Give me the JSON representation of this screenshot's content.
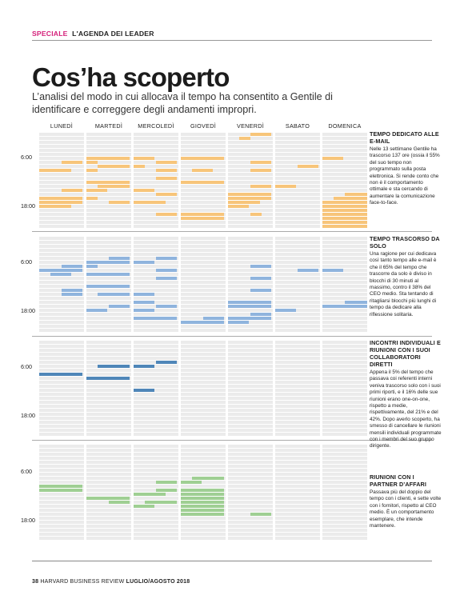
{
  "header": {
    "section": "SPECIALE",
    "agenda": "L'AGENDA DEI LEADER"
  },
  "title": "Cos’ha scoperto",
  "subtitle": "L’analisi del modo in cui allocava il tempo ha consentito a Gentile di identificare e correggere degli andamenti impropri.",
  "days": [
    "LUNEDÌ",
    "MARTEDÌ",
    "MERCOLEDÌ",
    "GIOVEDÌ",
    "VENERDÌ",
    "SABATO",
    "DOMENICA"
  ],
  "time_labels": [
    "6:00",
    "18:00"
  ],
  "colors": {
    "email": "#f7c57a",
    "solo": "#8fb4dd",
    "direct_reports": "#4f86b8",
    "partners": "#9fcf93",
    "accent": "#d4207a"
  },
  "sections": [
    {
      "title": "TEMPO DEDICATO ALLE E-MAIL",
      "body": "Nelle 13 settimane Gentile ha trascorso 137 ore (ossia il 55% del suo tempo non programmato sulla posta elettronica. Si rende conto che non è il comportamento ottimale e sta cercando di aumentare la comunicazione face-to-face."
    },
    {
      "title": "TEMPO TRASCORSO DA SOLO",
      "body": "Una ragione per cui dedicava così tanto tempo alle e-mail è che il 65% del tempo che trascorre da solo è diviso in blocchi di 30 minuti al massimo, contro il 38% del CEO medio. Sta tentando di ritagliarsi blocchi più lunghi di tempo da dedicare alla riflessione solitaria."
    },
    {
      "title": "INCONTRI INDIVIDUALI E RIUNIONI CON I SUOI COLLABORATORI DIRETTI",
      "body": "Appena il 5% del tempo che passava coi referenti interni veniva trascorso solo con i suoi primi riporti, e il 16% delle sue riunioni erano one-on-one, rispetto a medie, rispettivamente, del 21% e del 42%. Dopo averlo scoperto, ha smesso di cancellare le riunioni mensili individuali programmate con i membri del suo gruppo dirigente."
    },
    {
      "title": "RIUNIONI CON I PARTNER D’AFFARI",
      "body": "Passava più del doppio del tempo con i clienti, e sette volte con i fornitori, rispetto al CEO medio. È un comportamento esemplare, che intende mantenere."
    }
  ],
  "footer": {
    "page": "38",
    "publication": "HARVARD BUSINESS REVIEW",
    "issue": "LUGLIO/AGOSTO 2018"
  }
}
